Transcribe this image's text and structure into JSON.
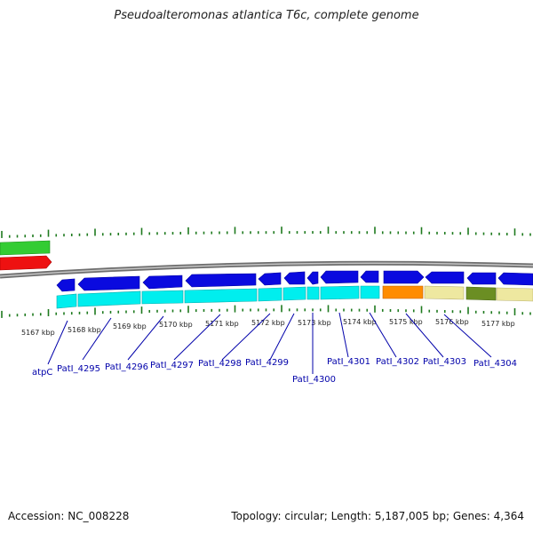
{
  "header": {
    "title": "Pseudoalteromonas atlantica T6c, complete genome"
  },
  "footer": {
    "accession": "Accession: NC_008228",
    "summary": "Topology: circular; Length: 5,187,005 bp; Genes: 4,364"
  },
  "scale": {
    "labels": [
      "5167 kbp",
      "5168 kbp",
      "5169 kbp",
      "5170 kbp",
      "5171 kbp",
      "5172 kbp",
      "5173 kbp",
      "5174 kbp",
      "5175 kbp",
      "5176 kbp",
      "5177 kbp"
    ]
  },
  "genes": {
    "labels": [
      "atpC",
      "PatI_4295",
      "PatI_4296",
      "PatI_4297",
      "PatI_4298",
      "PatI_4299",
      "PatI_4300",
      "PatI_4301",
      "PatI_4302",
      "PatI_4303",
      "PatI_4304"
    ]
  },
  "colors": {
    "gc_skew": "#1e7a1e",
    "backbone": "#888888",
    "cds_blue": "#0a0adf",
    "cyan": "#00eeee",
    "orange": "#ff8c00",
    "khaki": "#eee8a0",
    "olive": "#6b8e23",
    "green_track": "#2ecc2e",
    "red_track": "#ee1111",
    "label_link": "#0000aa"
  }
}
